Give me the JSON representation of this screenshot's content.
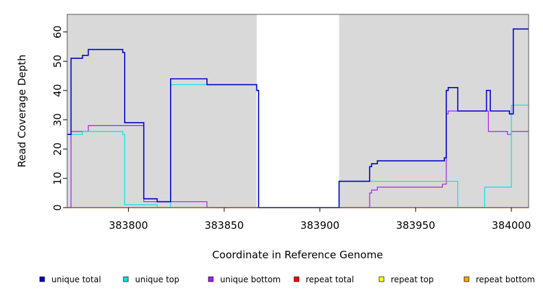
{
  "chart_data": {
    "type": "line",
    "title": "",
    "xlabel": "Coordinate in Reference Genome",
    "ylabel": "Read Coverage Depth",
    "xlim": [
      383768,
      384009
    ],
    "ylim": [
      0,
      66
    ],
    "xticks": [
      383800,
      383850,
      383900,
      383950,
      384000
    ],
    "yticks": [
      0,
      10,
      20,
      30,
      40,
      50,
      60
    ],
    "background": "#d9d9d9",
    "gap_region": [
      383867,
      383910
    ],
    "legend_position": "bottom",
    "series": [
      {
        "name": "unique total",
        "color": "#0000cc",
        "x": [
          383768,
          383770,
          383770,
          383776,
          383776,
          383779,
          383779,
          383797,
          383797,
          383798,
          383798,
          383808,
          383808,
          383815,
          383815,
          383822,
          383822,
          383841,
          383841,
          383867,
          383867,
          383868,
          383868,
          383910,
          383910,
          383926,
          383926,
          383927,
          383927,
          383930,
          383930,
          383965,
          383965,
          383966,
          383966,
          383967,
          383967,
          383972,
          383972,
          383987,
          383987,
          383989,
          383989,
          383999,
          383999,
          384001,
          384001,
          384009
        ],
        "y": [
          25,
          25,
          51,
          51,
          52,
          52,
          54,
          54,
          53,
          53,
          29,
          29,
          3,
          3,
          2,
          2,
          44,
          44,
          42,
          42,
          40,
          40,
          0,
          0,
          9,
          9,
          14,
          14,
          15,
          15,
          16,
          16,
          17,
          17,
          40,
          40,
          41,
          41,
          33,
          33,
          40,
          40,
          33,
          33,
          32,
          32,
          61,
          61
        ]
      },
      {
        "name": "unique top",
        "color": "#00e5e5",
        "x": [
          383768,
          383770,
          383770,
          383776,
          383776,
          383797,
          383797,
          383798,
          383798,
          383815,
          383815,
          383822,
          383822,
          383867,
          383867,
          383868,
          383868,
          383910,
          383910,
          383972,
          383972,
          383986,
          383986,
          384000,
          384000,
          384009
        ],
        "y": [
          25,
          25,
          25,
          25,
          26,
          26,
          25,
          25,
          1,
          1,
          0,
          0,
          42,
          42,
          40,
          40,
          0,
          0,
          9,
          9,
          0,
          0,
          7,
          7,
          35,
          35
        ]
      },
      {
        "name": "unique bottom",
        "color": "#a020f0",
        "x": [
          383768,
          383770,
          383770,
          383779,
          383779,
          383808,
          383808,
          383841,
          383841,
          383926,
          383926,
          383927,
          383927,
          383930,
          383930,
          383964,
          383964,
          383966,
          383966,
          383967,
          383967,
          383988,
          383988,
          383998,
          383998,
          384000,
          384000,
          384009
        ],
        "y": [
          0,
          0,
          26,
          26,
          28,
          28,
          2,
          2,
          0,
          0,
          5,
          5,
          6,
          6,
          7,
          7,
          8,
          8,
          32,
          32,
          33,
          33,
          26,
          26,
          25,
          25,
          26,
          26
        ]
      },
      {
        "name": "repeat total",
        "color": "#ff0000",
        "x": [
          383768,
          384009
        ],
        "y": [
          0,
          0
        ]
      },
      {
        "name": "repeat top",
        "color": "#ffff00",
        "x": [
          383768,
          384009
        ],
        "y": [
          0,
          0
        ]
      },
      {
        "name": "repeat bottom",
        "color": "#ffa500",
        "x": [
          383768,
          384009
        ],
        "y": [
          0,
          0
        ]
      }
    ]
  }
}
